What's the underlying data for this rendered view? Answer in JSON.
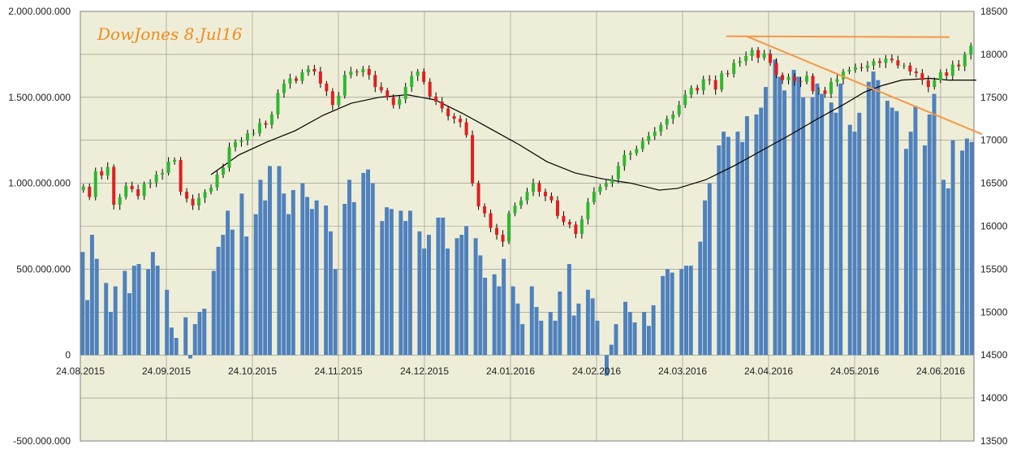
{
  "chart_data": {
    "type": "candlestick+bar",
    "title": "DowJones 8.Jul16",
    "x_labels": [
      "24.08.2015",
      "24.09.2015",
      "24.10.2015",
      "24.11.2015",
      "24.12.2015",
      "24.01.2016",
      "24.02.2016",
      "24.03.2016",
      "24.04.2016",
      "24.05.2016",
      "24.06.2016"
    ],
    "left_axis": {
      "ticks": [
        "2.000.000.000",
        "1.500.000.000",
        "1.000.000.000",
        "500.000.000",
        "0",
        "-500.000.000"
      ],
      "range": [
        -500000000,
        2000000000
      ]
    },
    "right_axis": {
      "ticks": [
        "18500",
        "18000",
        "17500",
        "17000",
        "16500",
        "16000",
        "15500",
        "15000",
        "14500",
        "14000",
        "13500"
      ],
      "range": [
        13500,
        18500
      ]
    },
    "grid": true,
    "colors": {
      "background": "#eeeed8",
      "volume": "#4f81bd",
      "up": "#2eb82e",
      "down": "#e01f1f",
      "wick": "#000000",
      "moving_average": "#000000",
      "trendline": "#f79646",
      "grid": "#8a8a8a"
    },
    "volume_series": [
      600,
      320,
      700,
      560,
      0,
      420,
      250,
      400,
      0,
      490,
      360,
      520,
      530,
      0,
      500,
      600,
      520,
      0,
      380,
      160,
      100,
      0,
      220,
      -20,
      180,
      250,
      270,
      0,
      490,
      630,
      700,
      840,
      730,
      0,
      940,
      690,
      0,
      820,
      1020,
      900,
      1100,
      0,
      1100,
      940,
      820,
      960,
      0,
      1000,
      920,
      850,
      900,
      0,
      870,
      720,
      500,
      0,
      880,
      1020,
      890,
      0,
      1060,
      1080,
      1000,
      0,
      780,
      860,
      850,
      0,
      840,
      780,
      840,
      0,
      720,
      620,
      700,
      0,
      800,
      800,
      620,
      0,
      680,
      700,
      750,
      0,
      680,
      580,
      450,
      0,
      470,
      400,
      560,
      0,
      400,
      300,
      180,
      0,
      400,
      280,
      200,
      0,
      250,
      200,
      370,
      0,
      530,
      230,
      300,
      0,
      380,
      330,
      200,
      0,
      -120,
      60,
      180,
      0,
      310,
      250,
      190,
      0,
      250,
      170,
      290,
      0,
      460,
      500,
      480,
      0,
      500,
      520,
      520,
      0,
      660,
      900,
      1000,
      0,
      1220,
      1300,
      1270,
      0,
      1300,
      1240,
      1390,
      0,
      1400,
      1440,
      1560,
      0,
      1720,
      1620,
      1540,
      0,
      1660,
      1620,
      1500,
      0,
      1500,
      1580,
      1520,
      0,
      1470,
      1410,
      1580,
      0,
      1340,
      1300,
      1410,
      0,
      1590,
      1650,
      1600,
      0,
      1480,
      1440,
      1420,
      0,
      1200,
      1300,
      1450,
      0,
      1220,
      1400,
      1520,
      0,
      1020,
      970,
      1250,
      0,
      1190,
      1260,
      1240
    ],
    "ohlc_mode": "generated-from-price-path",
    "price_path": [
      16460,
      16340,
      16640,
      16590,
      16690,
      16250,
      16340,
      16470,
      16430,
      16350,
      16490,
      16510,
      16600,
      16620,
      16750,
      16770,
      16400,
      16320,
      16240,
      16330,
      16400,
      16450,
      16600,
      16680,
      16920,
      16980,
      17000,
      17080,
      17080,
      17200,
      17180,
      17300,
      17550,
      17660,
      17720,
      17690,
      17790,
      17830,
      17800,
      17660,
      17570,
      17410,
      17520,
      17760,
      17800,
      17790,
      17830,
      17760,
      17620,
      17580,
      17500,
      17410,
      17480,
      17620,
      17750,
      17800,
      17680,
      17510,
      17450,
      17370,
      17280,
      17250,
      17210,
      17060,
      16500,
      16230,
      16150,
      15980,
      15900,
      15820,
      16150,
      16240,
      16300,
      16400,
      16500,
      16400,
      16350,
      16300,
      16120,
      16050,
      16020,
      15910,
      16080,
      16280,
      16400,
      16460,
      16500,
      16550,
      16700,
      16830,
      16850,
      16900,
      16990,
      17050,
      17100,
      17180,
      17250,
      17300,
      17410,
      17530,
      17610,
      17580,
      17710,
      17700,
      17590,
      17780,
      17770,
      17900,
      17920,
      17980,
      18050,
      17960,
      18010,
      17900,
      17760,
      17700,
      17740,
      17690,
      17680,
      17750,
      17570,
      17580,
      17540,
      17680,
      17710,
      17800,
      17820,
      17850,
      17840,
      17870,
      17920,
      17900,
      17950,
      17930,
      17870,
      17870,
      17800,
      17780,
      17700,
      17620,
      17700,
      17790,
      17750,
      17880,
      17860,
      18000,
      18100
    ],
    "moving_average": [
      [
        70,
        16600
      ],
      [
        85,
        16830
      ],
      [
        100,
        16980
      ],
      [
        115,
        17110
      ],
      [
        130,
        17290
      ],
      [
        145,
        17430
      ],
      [
        160,
        17500
      ],
      [
        175,
        17530
      ],
      [
        190,
        17470
      ],
      [
        205,
        17310
      ],
      [
        220,
        17130
      ],
      [
        235,
        16950
      ],
      [
        250,
        16750
      ],
      [
        265,
        16620
      ],
      [
        280,
        16550
      ],
      [
        295,
        16500
      ],
      [
        310,
        16420
      ],
      [
        320,
        16440
      ],
      [
        335,
        16540
      ],
      [
        350,
        16700
      ],
      [
        365,
        16880
      ],
      [
        380,
        17060
      ],
      [
        395,
        17250
      ],
      [
        410,
        17430
      ],
      [
        420,
        17560
      ],
      [
        430,
        17640
      ],
      [
        440,
        17700
      ],
      [
        455,
        17720
      ],
      [
        465,
        17700
      ],
      [
        480,
        17700
      ]
    ],
    "trendlines": [
      {
        "from": [
          895,
          18210
        ],
        "to": [
          1170,
          18200
        ]
      },
      {
        "from": [
          920,
          18210
        ],
        "to": [
          1210,
          17070
        ]
      }
    ]
  }
}
